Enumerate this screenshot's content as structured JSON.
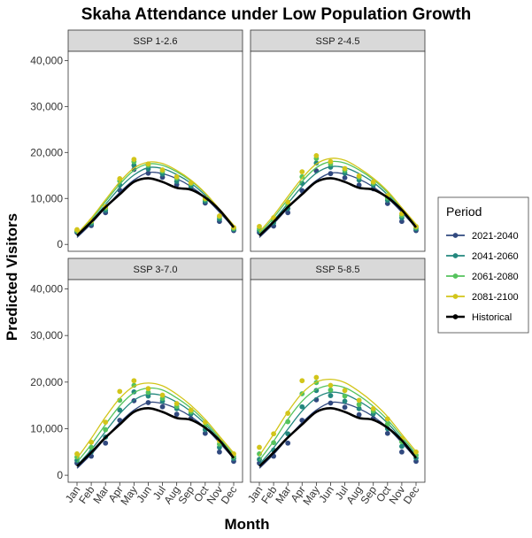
{
  "chart_data": {
    "type": "line",
    "title": "Skaha Attendance under Low Population Growth",
    "xlabel": "Month",
    "ylabel": "Predicted Visitors",
    "categories": [
      "Jan",
      "Feb",
      "Mar",
      "Apr",
      "May",
      "Jun",
      "Jul",
      "Aug",
      "Sep",
      "Oct",
      "Nov",
      "Dec"
    ],
    "ylim": [
      -1500,
      42000
    ],
    "yticks": [
      0,
      10000,
      20000,
      30000,
      40000
    ],
    "ytick_labels": [
      "0",
      "10,000",
      "20,000",
      "30,000",
      "40,000"
    ],
    "grid": false,
    "legend": {
      "title": "Period",
      "position": "right",
      "entries": [
        {
          "name": "2021-2040",
          "color": "#31497f"
        },
        {
          "name": "2041-2060",
          "color": "#23877e"
        },
        {
          "name": "2061-2080",
          "color": "#55c35d"
        },
        {
          "name": "2081-2100",
          "color": "#d2c51a"
        },
        {
          "name": "Historical",
          "color": "#000000"
        }
      ]
    },
    "panels": [
      {
        "title": "SSP 1-2.6",
        "series": [
          {
            "name": "2021-2040",
            "points": [
              2600,
              4100,
              6900,
              11800,
              16300,
              15500,
              14600,
              13000,
              12200,
              9000,
              5000,
              3000
            ],
            "fit": [
              1500,
              4500,
              8000,
              11300,
              14000,
              15600,
              15400,
              14300,
              12600,
              10200,
              7000,
              3600
            ]
          },
          {
            "name": "2041-2060",
            "points": [
              2800,
              4500,
              7400,
              12900,
              17200,
              16400,
              15300,
              13700,
              12700,
              9400,
              5500,
              3300
            ],
            "fit": [
              1800,
              5000,
              8700,
              12300,
              15100,
              16700,
              16500,
              15200,
              13300,
              10700,
              7400,
              3900
            ]
          },
          {
            "name": "2061-2080",
            "points": [
              3000,
              4900,
              7900,
              13800,
              18000,
              17200,
              15900,
              14400,
              13200,
              9800,
              6000,
              3500
            ],
            "fit": [
              2100,
              5400,
              9300,
              13100,
              16100,
              17500,
              17200,
              15800,
              13800,
              11100,
              7600,
              4100
            ]
          },
          {
            "name": "2081-2100",
            "points": [
              3200,
              5100,
              8200,
              14300,
              18500,
              17500,
              16200,
              14700,
              13400,
              10000,
              6200,
              3700
            ],
            "fit": [
              2300,
              5700,
              9700,
              13600,
              16600,
              17900,
              17600,
              16100,
              14000,
              11200,
              7700,
              4200
            ]
          },
          {
            "name": "Historical",
            "points": [],
            "fit": [
              1900,
              4900,
              8100,
              10900,
              13600,
              14400,
              13600,
              12300,
              11900,
              10200,
              7500,
              3700
            ]
          }
        ]
      },
      {
        "title": "SSP 2-4.5",
        "series": [
          {
            "name": "2021-2040",
            "points": [
              2600,
              4000,
              6900,
              11700,
              16000,
              15400,
              14500,
              12900,
              12100,
              8900,
              5000,
              3000
            ],
            "fit": [
              1500,
              4500,
              7900,
              11200,
              13900,
              15500,
              15300,
              14200,
              12500,
              10100,
              7000,
              3600
            ]
          },
          {
            "name": "2041-2060",
            "points": [
              3000,
              4700,
              7800,
              13300,
              17700,
              16800,
              15500,
              14000,
              12900,
              9600,
              5800,
              3400
            ],
            "fit": [
              1900,
              5200,
              8900,
              12600,
              15500,
              16900,
              16700,
              15400,
              13500,
              10800,
              7500,
              4000
            ]
          },
          {
            "name": "2061-2080",
            "points": [
              3400,
              5300,
              8600,
              14700,
              18700,
              17500,
              16100,
              14600,
              13300,
              10100,
              6300,
              3700
            ],
            "fit": [
              2300,
              5800,
              9800,
              13700,
              16700,
              18000,
              17700,
              16200,
              14100,
              11300,
              7800,
              4200
            ]
          },
          {
            "name": "2081-2100",
            "points": [
              3900,
              5800,
              9200,
              15800,
              19300,
              18000,
              16500,
              14900,
              13600,
              10600,
              6700,
              3900
            ],
            "fit": [
              2700,
              6300,
              10400,
              14400,
              17500,
              18700,
              18300,
              16600,
              14400,
              11600,
              8000,
              4400
            ]
          },
          {
            "name": "Historical",
            "points": [],
            "fit": [
              1900,
              4900,
              8100,
              10900,
              13600,
              14400,
              13600,
              12300,
              11900,
              10200,
              7500,
              3700
            ]
          }
        ]
      },
      {
        "title": "SSP 3-7.0",
        "series": [
          {
            "name": "2021-2040",
            "points": [
              2600,
              4100,
              6900,
              11800,
              16000,
              15600,
              14700,
              13100,
              12200,
              9000,
              5000,
              3000
            ],
            "fit": [
              1500,
              4500,
              8000,
              11300,
              14000,
              15600,
              15400,
              14300,
              12600,
              10200,
              7000,
              3600
            ]
          },
          {
            "name": "2041-2060",
            "points": [
              3200,
              5000,
              8200,
              14000,
              17900,
              17000,
              15900,
              14300,
              13200,
              9800,
              6000,
              3600
            ],
            "fit": [
              2100,
              5500,
              9400,
              13200,
              16100,
              17400,
              17100,
              15700,
              13700,
              11000,
              7600,
              4100
            ]
          },
          {
            "name": "2061-2080",
            "points": [
              3900,
              6000,
              9800,
              16100,
              19300,
              17800,
              16500,
              14800,
              13600,
              10500,
              6700,
              4000
            ],
            "fit": [
              2800,
              6600,
              10900,
              14900,
              17700,
              18700,
              18300,
              16600,
              14400,
              11500,
              8000,
              4400
            ]
          },
          {
            "name": "2081-2100",
            "points": [
              4600,
              7100,
              11400,
              18000,
              20300,
              18600,
              17200,
              15400,
              14000,
              11400,
              7400,
              4600
            ],
            "fit": [
              3600,
              7900,
              12500,
              16500,
              19100,
              19800,
              19200,
              17400,
              15000,
              12000,
              8400,
              4800
            ]
          },
          {
            "name": "Historical",
            "points": [],
            "fit": [
              1900,
              4900,
              8100,
              10900,
              13600,
              14400,
              13600,
              12300,
              11900,
              10200,
              7500,
              3700
            ]
          }
        ]
      },
      {
        "title": "SSP 5-8.5",
        "series": [
          {
            "name": "2021-2040",
            "points": [
              2600,
              4100,
              6900,
              11800,
              16200,
              15500,
              14600,
              13000,
              12200,
              9000,
              5000,
              3000
            ],
            "fit": [
              1500,
              4500,
              8000,
              11300,
              14000,
              15600,
              15400,
              14300,
              12600,
              10200,
              7000,
              3600
            ]
          },
          {
            "name": "2041-2060",
            "points": [
              3400,
              5400,
              8900,
              14700,
              18200,
              17100,
              15900,
              14300,
              13200,
              10000,
              6200,
              3700
            ],
            "fit": [
              2300,
              5900,
              9900,
              13800,
              16600,
              17800,
              17400,
              15900,
              13900,
              11200,
              7800,
              4200
            ]
          },
          {
            "name": "2061-2080",
            "points": [
              4600,
              7000,
              11500,
              17500,
              19900,
              18300,
              17000,
              15200,
              13800,
              11000,
              7200,
              4300
            ],
            "fit": [
              3200,
              7300,
              12000,
              15900,
              18400,
              19300,
              18800,
              17100,
              14800,
              11900,
              8300,
              4600
            ]
          },
          {
            "name": "2081-2100",
            "points": [
              6000,
              8900,
              13300,
              20300,
              21000,
              19300,
              18200,
              16100,
              14300,
              12100,
              7900,
              5000
            ],
            "fit": [
              4200,
              8800,
              13600,
              17600,
              20000,
              20600,
              19900,
              18000,
              15600,
              12600,
              8800,
              5100
            ]
          },
          {
            "name": "Historical",
            "points": [],
            "fit": [
              1900,
              4900,
              8100,
              10900,
              13600,
              14400,
              13600,
              12300,
              11900,
              10200,
              7500,
              3700
            ]
          }
        ]
      }
    ]
  }
}
